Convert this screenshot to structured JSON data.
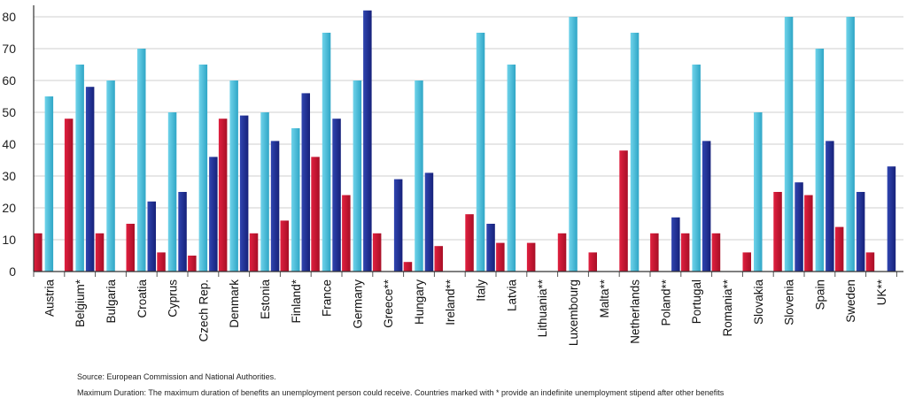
{
  "chart_data": {
    "type": "bar",
    "categories": [
      "Austria",
      "Belgium*",
      "Bulgaria",
      "Croatia",
      "Cyprus",
      "Czech Rep.",
      "Denmark",
      "Estonia",
      "Finland*",
      "France",
      "Germany",
      "Greece**",
      "Hungary",
      "Ireland**",
      "Italy",
      "Latvia",
      "Lithuania**",
      "Luxembourg",
      "Malta**",
      "Netherlands",
      "Poland**",
      "Portugal",
      "Romania**",
      "Slovakia",
      "Slovenia",
      "Spain",
      "Sweden",
      "UK**"
    ],
    "series": [
      {
        "color": "#c8102e",
        "values": [
          12,
          48,
          12,
          15,
          6,
          5,
          48,
          12,
          16,
          36,
          24,
          12,
          3,
          8,
          18,
          9,
          9,
          12,
          6,
          38,
          12,
          12,
          12,
          6,
          25,
          24,
          14,
          6
        ]
      },
      {
        "color": "#4dbfd9",
        "values": [
          55,
          65,
          60,
          70,
          50,
          65,
          60,
          50,
          45,
          75,
          60,
          null,
          60,
          null,
          75,
          65,
          null,
          80,
          null,
          75,
          null,
          65,
          null,
          50,
          80,
          70,
          80,
          null
        ]
      },
      {
        "color": "#1f2f8f",
        "values": [
          null,
          58,
          null,
          22,
          25,
          36,
          49,
          41,
          56,
          48,
          82,
          29,
          31,
          null,
          15,
          null,
          null,
          null,
          null,
          null,
          17,
          41,
          null,
          null,
          28,
          41,
          25,
          33
        ]
      }
    ],
    "y_ticks": [
      0,
      10,
      20,
      30,
      40,
      50,
      60,
      70,
      80
    ],
    "ylim": [
      0,
      82
    ],
    "grid": true
  },
  "footnotes": {
    "source": "Source: European Commission and National Authorities.",
    "note": "Maximum Duration: The maximum duration of benefits an unemployment person could receive. Countries marked with * provide an indefinite unemployment stipend after other benefits"
  }
}
